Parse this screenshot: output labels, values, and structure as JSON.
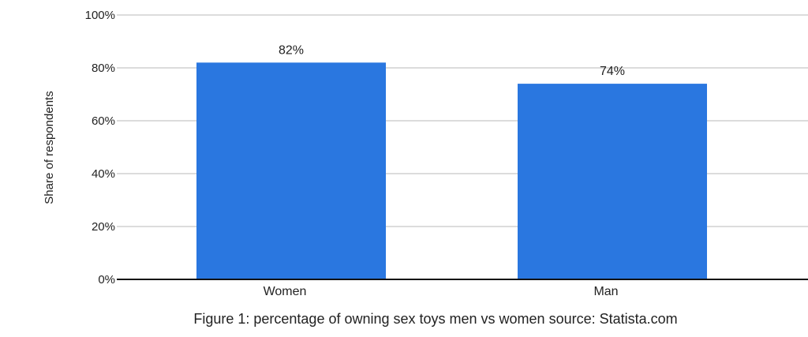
{
  "chart_data": {
    "type": "bar",
    "categories": [
      "Women",
      "Man"
    ],
    "values": [
      82,
      74
    ],
    "data_labels": [
      "82%",
      "74%"
    ],
    "ylabel": "Share of respondents",
    "ylim": [
      0,
      100
    ],
    "yticks": [
      0,
      20,
      40,
      60,
      80,
      100
    ],
    "ytick_labels": [
      "0%",
      "20%",
      "40%",
      "60%",
      "80%",
      "100%"
    ],
    "grid": true,
    "bar_color": "#2a77e0"
  },
  "caption": "Figure 1: percentage of owning sex toys men vs women source: Statista.com"
}
